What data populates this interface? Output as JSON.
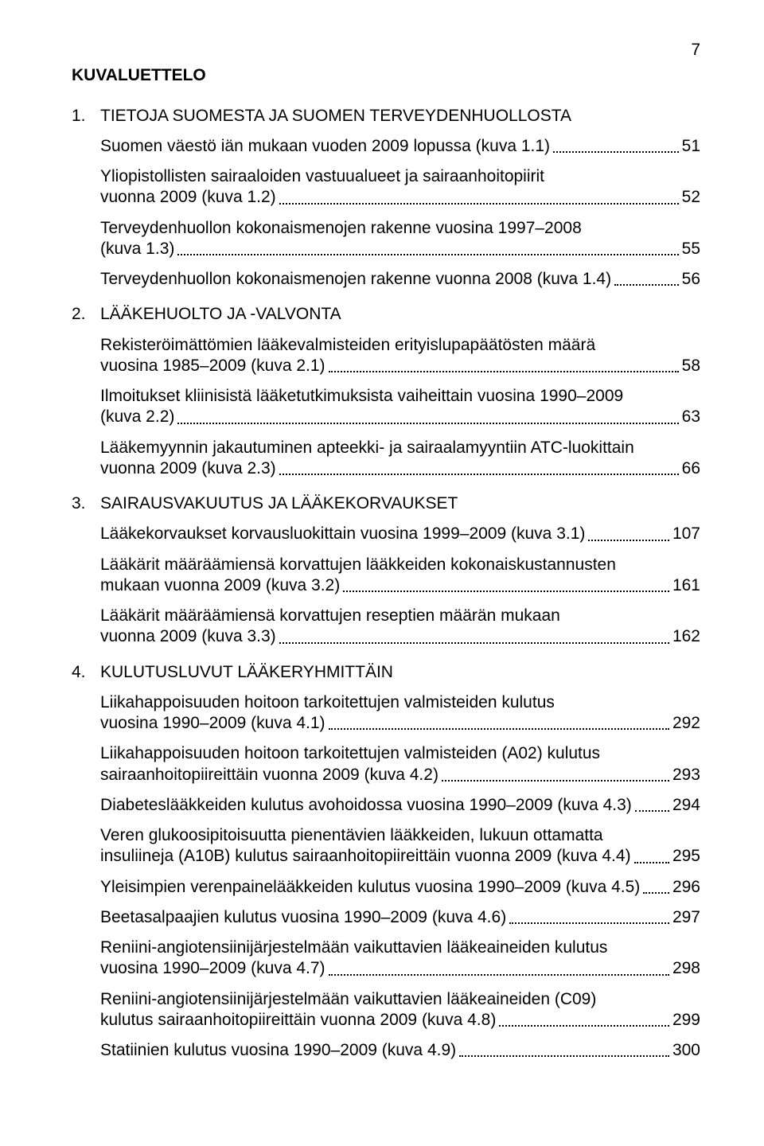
{
  "page_number": "7",
  "main_heading": "KUVALUETTELO",
  "sections": [
    {
      "num": "1.",
      "title": "TIETOJA SUOMESTA JA SUOMEN TERVEYDENHUOLLOSTA",
      "entries": [
        {
          "pre": [],
          "tail": "Suomen väestö iän mukaan vuoden 2009 lopussa (kuva 1.1)",
          "page": "51"
        },
        {
          "pre": [
            "Yliopistollisten sairaaloiden vastuualueet ja sairaanhoitopiirit"
          ],
          "tail": "vuonna 2009 (kuva 1.2)",
          "page": "52"
        },
        {
          "pre": [
            "Terveydenhuollon kokonaismenojen rakenne vuosina 1997–2008"
          ],
          "tail": "(kuva 1.3)",
          "page": "55"
        },
        {
          "pre": [],
          "tail": "Terveydenhuollon kokonaismenojen rakenne vuonna 2008 (kuva 1.4)",
          "page": "56"
        }
      ]
    },
    {
      "num": "2.",
      "title": "LÄÄKEHUOLTO JA -VALVONTA",
      "entries": [
        {
          "pre": [
            "Rekisteröimättömien lääkevalmisteiden erityislupapäätösten määrä"
          ],
          "tail": "vuosina 1985–2009 (kuva 2.1)",
          "page": "58"
        },
        {
          "pre": [
            "Ilmoitukset kliinisistä lääketutkimuksista vaiheittain vuosina 1990–2009"
          ],
          "tail": "(kuva 2.2)",
          "page": "63"
        },
        {
          "pre": [
            "Lääkemyynnin jakautuminen apteekki- ja sairaalamyyntiin ATC-luokittain"
          ],
          "tail": "vuonna 2009 (kuva 2.3)",
          "page": "66"
        }
      ]
    },
    {
      "num": "3.",
      "title": "SAIRAUSVAKUUTUS JA LÄÄKEKORVAUKSET",
      "entries": [
        {
          "pre": [],
          "tail": "Lääkekorvaukset korvausluokittain vuosina 1999–2009 (kuva 3.1)",
          "page": "107"
        },
        {
          "pre": [
            "Lääkärit määräämiensä korvattujen lääkkeiden kokonaiskustannusten"
          ],
          "tail": "mukaan vuonna 2009 (kuva 3.2)",
          "page": "161"
        },
        {
          "pre": [
            "Lääkärit määräämiensä korvattujen reseptien määrän mukaan"
          ],
          "tail": "vuonna 2009 (kuva 3.3)",
          "page": "162"
        }
      ]
    },
    {
      "num": "4.",
      "title": "KULUTUSLUVUT LÄÄKERYHMITTÄIN",
      "entries": [
        {
          "pre": [
            "Liikahappoisuuden hoitoon tarkoitettujen valmisteiden kulutus"
          ],
          "tail": "vuosina 1990–2009 (kuva 4.1)",
          "page": "292"
        },
        {
          "pre": [
            "Liikahappoisuuden hoitoon tarkoitettujen valmisteiden (A02) kulutus"
          ],
          "tail": "sairaanhoitopiireittäin vuonna 2009 (kuva 4.2)",
          "page": "293"
        },
        {
          "pre": [],
          "tail": "Diabeteslääkkeiden kulutus avohoidossa vuosina 1990–2009 (kuva 4.3)",
          "page": "294"
        },
        {
          "pre": [
            "Veren glukoosipitoisuutta pienentävien lääkkeiden, lukuun ottamatta"
          ],
          "tail": "insuliineja (A10B) kulutus sairaanhoitopiireittäin vuonna 2009 (kuva 4.4)",
          "page": "295"
        },
        {
          "pre": [],
          "tail": "Yleisimpien verenpainelääkkeiden kulutus vuosina 1990–2009 (kuva 4.5)",
          "page": "296"
        },
        {
          "pre": [],
          "tail": "Beetasalpaajien kulutus vuosina 1990–2009 (kuva 4.6)",
          "page": "297"
        },
        {
          "pre": [
            "Reniini-angiotensiinijärjestelmään vaikuttavien lääkeaineiden kulutus"
          ],
          "tail": "vuosina 1990–2009 (kuva 4.7)",
          "page": "298"
        },
        {
          "pre": [
            "Reniini-angiotensiinijärjestelmään vaikuttavien lääkeaineiden (C09)"
          ],
          "tail": "kulutus sairaanhoitopiireittäin vuonna 2009 (kuva 4.8)",
          "page": "299"
        },
        {
          "pre": [],
          "tail": "Statiinien kulutus vuosina 1990–2009 (kuva 4.9)",
          "page": "300"
        }
      ]
    }
  ]
}
